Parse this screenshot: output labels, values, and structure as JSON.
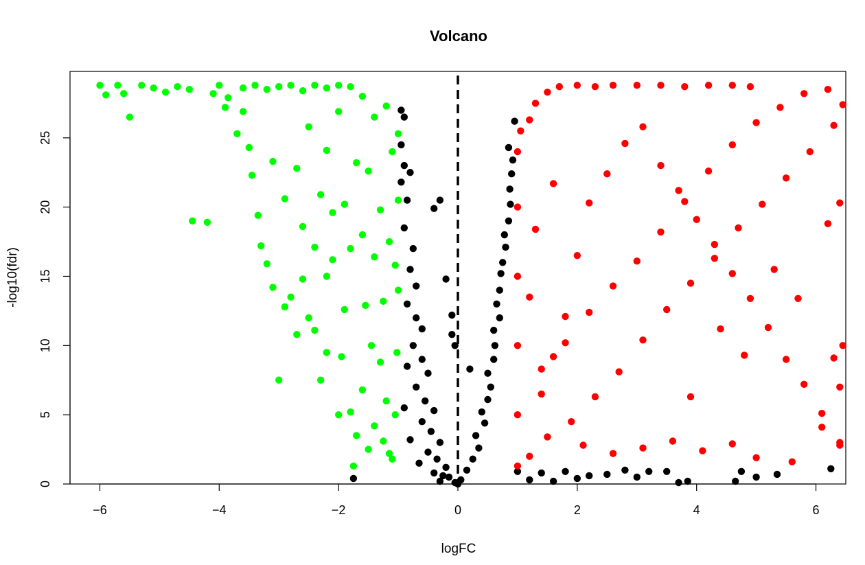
{
  "chart_data": {
    "type": "scatter",
    "title": "Volcano",
    "xlabel": "logFC",
    "ylabel": "-log10(fdr)",
    "xlim": [
      -6.5,
      6.5
    ],
    "ylim": [
      0,
      29.8
    ],
    "x_ticks": [
      "-6",
      "-4",
      "-2",
      "0",
      "2",
      "4",
      "6"
    ],
    "y_ticks": [
      "0",
      "5",
      "10",
      "15",
      "20",
      "25"
    ],
    "vertical_line": {
      "x": 0,
      "style": "dashed",
      "color": "#000000"
    },
    "legend": "none",
    "grid": false,
    "series": [
      {
        "color": "#00ff00",
        "points": [
          [
            -6.0,
            28.8
          ],
          [
            -5.9,
            28.1
          ],
          [
            -5.7,
            28.8
          ],
          [
            -5.6,
            28.2
          ],
          [
            -5.5,
            26.5
          ],
          [
            -5.3,
            28.8
          ],
          [
            -5.1,
            28.6
          ],
          [
            -4.9,
            28.3
          ],
          [
            -4.7,
            28.7
          ],
          [
            -4.5,
            28.5
          ],
          [
            -4.45,
            19.0
          ],
          [
            -4.2,
            18.9
          ],
          [
            -4.1,
            28.2
          ],
          [
            -4.0,
            28.8
          ],
          [
            -3.9,
            27.2
          ],
          [
            -3.85,
            27.9
          ],
          [
            -3.7,
            25.3
          ],
          [
            -3.6,
            26.9
          ],
          [
            -3.5,
            24.3
          ],
          [
            -3.45,
            22.3
          ],
          [
            -3.35,
            19.4
          ],
          [
            -3.3,
            17.2
          ],
          [
            -3.2,
            15.9
          ],
          [
            -3.1,
            14.2
          ],
          [
            -3.0,
            7.5
          ],
          [
            -2.9,
            12.8
          ],
          [
            -2.8,
            13.5
          ],
          [
            -2.7,
            10.8
          ],
          [
            -2.6,
            14.8
          ],
          [
            -2.5,
            12.0
          ],
          [
            -2.4,
            11.1
          ],
          [
            -2.3,
            7.5
          ],
          [
            -2.2,
            9.5
          ],
          [
            -2.1,
            16.2
          ],
          [
            -2.0,
            5.0
          ],
          [
            -1.95,
            9.2
          ],
          [
            -1.9,
            12.6
          ],
          [
            -1.8,
            5.2
          ],
          [
            -1.75,
            1.3
          ],
          [
            -1.7,
            3.5
          ],
          [
            -1.6,
            6.8
          ],
          [
            -1.55,
            12.9
          ],
          [
            -1.5,
            2.5
          ],
          [
            -1.45,
            10.0
          ],
          [
            -1.4,
            4.2
          ],
          [
            -1.3,
            8.8
          ],
          [
            -1.25,
            3.1
          ],
          [
            -1.2,
            6.0
          ],
          [
            -1.15,
            2.2
          ],
          [
            -1.1,
            1.8
          ],
          [
            -1.05,
            5.0
          ],
          [
            -1.02,
            9.5
          ],
          [
            -1.0,
            14.0
          ],
          [
            -1.0,
            20.5
          ],
          [
            -1.0,
            25.3
          ],
          [
            -1.1,
            24.0
          ],
          [
            -1.2,
            27.3
          ],
          [
            -1.4,
            26.5
          ],
          [
            -1.6,
            28.0
          ],
          [
            -1.8,
            28.7
          ],
          [
            -2.0,
            28.8
          ],
          [
            -2.2,
            28.6
          ],
          [
            -2.4,
            28.8
          ],
          [
            -2.6,
            28.4
          ],
          [
            -2.8,
            28.8
          ],
          [
            -3.0,
            28.7
          ],
          [
            -3.2,
            28.5
          ],
          [
            -3.4,
            28.8
          ],
          [
            -3.6,
            28.6
          ],
          [
            -2.5,
            25.8
          ],
          [
            -2.2,
            24.1
          ],
          [
            -2.0,
            26.9
          ],
          [
            -1.7,
            23.2
          ],
          [
            -1.5,
            22.6
          ],
          [
            -1.3,
            19.8
          ],
          [
            -1.15,
            17.5
          ],
          [
            -1.05,
            15.8
          ],
          [
            -2.3,
            20.9
          ],
          [
            -2.7,
            22.8
          ],
          [
            -1.9,
            20.2
          ],
          [
            -1.6,
            18.0
          ],
          [
            -1.4,
            16.4
          ],
          [
            -1.25,
            13.2
          ],
          [
            -1.8,
            17.0
          ],
          [
            -2.1,
            19.6
          ],
          [
            -3.1,
            23.3
          ],
          [
            -2.9,
            20.6
          ],
          [
            -2.6,
            18.6
          ],
          [
            -2.4,
            17.1
          ],
          [
            -2.2,
            15.0
          ]
        ]
      },
      {
        "color": "#000000",
        "points": [
          [
            -1.75,
            0.4
          ],
          [
            -0.95,
            27.0
          ],
          [
            -0.9,
            26.5
          ],
          [
            -0.95,
            24.5
          ],
          [
            -0.9,
            23.0
          ],
          [
            -0.8,
            22.5
          ],
          [
            -0.95,
            21.8
          ],
          [
            -0.85,
            20.5
          ],
          [
            -0.9,
            18.5
          ],
          [
            -0.75,
            17.0
          ],
          [
            -0.8,
            15.5
          ],
          [
            -0.7,
            14.3
          ],
          [
            -0.85,
            13.0
          ],
          [
            -0.7,
            12.0
          ],
          [
            -0.6,
            11.2
          ],
          [
            -0.75,
            10.0
          ],
          [
            -0.6,
            9.0
          ],
          [
            -0.5,
            8.0
          ],
          [
            -0.7,
            7.0
          ],
          [
            -0.55,
            6.0
          ],
          [
            -0.4,
            5.3
          ],
          [
            -0.6,
            4.5
          ],
          [
            -0.45,
            3.8
          ],
          [
            -0.3,
            3.0
          ],
          [
            -0.5,
            2.3
          ],
          [
            -0.35,
            1.8
          ],
          [
            -0.2,
            1.2
          ],
          [
            -0.4,
            0.8
          ],
          [
            -0.15,
            0.5
          ],
          [
            -0.3,
            0.2
          ],
          [
            -0.05,
            0.1
          ],
          [
            -0.3,
            20.5
          ],
          [
            -0.4,
            19.9
          ],
          [
            -0.2,
            14.8
          ],
          [
            -0.1,
            12.2
          ],
          [
            -0.1,
            10.8
          ],
          [
            -0.05,
            10.0
          ],
          [
            0.2,
            8.3
          ],
          [
            0.05,
            0.3
          ],
          [
            0.15,
            1.0
          ],
          [
            0.25,
            1.8
          ],
          [
            0.35,
            2.6
          ],
          [
            0.3,
            3.5
          ],
          [
            0.45,
            4.4
          ],
          [
            0.4,
            5.2
          ],
          [
            0.5,
            6.1
          ],
          [
            0.55,
            7.0
          ],
          [
            0.5,
            8.0
          ],
          [
            0.6,
            9.0
          ],
          [
            0.62,
            10.0
          ],
          [
            0.6,
            11.1
          ],
          [
            0.7,
            12.0
          ],
          [
            0.65,
            13.0
          ],
          [
            0.7,
            14.0
          ],
          [
            0.72,
            15.2
          ],
          [
            0.75,
            16.0
          ],
          [
            0.8,
            17.1
          ],
          [
            0.78,
            18.0
          ],
          [
            0.85,
            19.0
          ],
          [
            0.88,
            20.2
          ],
          [
            0.87,
            21.3
          ],
          [
            0.9,
            22.4
          ],
          [
            0.92,
            23.4
          ],
          [
            0.85,
            24.3
          ],
          [
            0.95,
            26.2
          ],
          [
            1.0,
            0.9
          ],
          [
            1.2,
            0.3
          ],
          [
            1.4,
            0.8
          ],
          [
            1.6,
            0.2
          ],
          [
            1.8,
            0.9
          ],
          [
            2.0,
            0.4
          ],
          [
            2.2,
            0.6
          ],
          [
            2.5,
            0.7
          ],
          [
            2.8,
            1.0
          ],
          [
            3.0,
            0.5
          ],
          [
            3.2,
            0.9
          ],
          [
            3.5,
            0.9
          ],
          [
            3.7,
            0.1
          ],
          [
            3.85,
            0.2
          ],
          [
            4.65,
            0.2
          ],
          [
            4.75,
            0.9
          ],
          [
            5.0,
            0.5
          ],
          [
            5.35,
            0.7
          ],
          [
            6.25,
            1.1
          ],
          [
            -0.25,
            0.6
          ],
          [
            0.0,
            0.0
          ],
          [
            -0.65,
            1.5
          ],
          [
            -0.8,
            3.2
          ],
          [
            -0.9,
            5.5
          ],
          [
            -0.85,
            8.5
          ]
        ]
      },
      {
        "color": "#ff0000",
        "points": [
          [
            1.0,
            1.3
          ],
          [
            1.0,
            5.0
          ],
          [
            1.0,
            10.0
          ],
          [
            1.0,
            15.0
          ],
          [
            1.0,
            20.0
          ],
          [
            1.0,
            24.0
          ],
          [
            1.05,
            25.5
          ],
          [
            1.2,
            26.3
          ],
          [
            1.3,
            27.5
          ],
          [
            1.5,
            28.3
          ],
          [
            1.7,
            28.7
          ],
          [
            2.0,
            28.8
          ],
          [
            2.3,
            28.7
          ],
          [
            2.6,
            28.8
          ],
          [
            3.0,
            28.8
          ],
          [
            3.4,
            28.8
          ],
          [
            3.8,
            28.7
          ],
          [
            4.2,
            28.8
          ],
          [
            4.6,
            28.8
          ],
          [
            4.9,
            28.7
          ],
          [
            1.2,
            2.0
          ],
          [
            1.4,
            6.5
          ],
          [
            1.6,
            9.2
          ],
          [
            1.8,
            12.1
          ],
          [
            2.0,
            16.5
          ],
          [
            2.2,
            20.3
          ],
          [
            2.5,
            22.4
          ],
          [
            2.8,
            24.6
          ],
          [
            3.1,
            25.8
          ],
          [
            3.4,
            23.0
          ],
          [
            3.7,
            21.2
          ],
          [
            4.0,
            19.1
          ],
          [
            4.3,
            17.3
          ],
          [
            4.6,
            15.2
          ],
          [
            4.9,
            13.4
          ],
          [
            5.2,
            11.3
          ],
          [
            5.5,
            9.0
          ],
          [
            5.8,
            7.2
          ],
          [
            6.1,
            5.1
          ],
          [
            6.4,
            3.0
          ],
          [
            1.5,
            3.4
          ],
          [
            1.9,
            4.5
          ],
          [
            2.3,
            6.3
          ],
          [
            2.7,
            8.1
          ],
          [
            3.1,
            10.4
          ],
          [
            3.5,
            12.6
          ],
          [
            3.9,
            14.5
          ],
          [
            4.3,
            16.3
          ],
          [
            4.7,
            18.5
          ],
          [
            5.1,
            20.2
          ],
          [
            5.5,
            22.1
          ],
          [
            5.9,
            24.0
          ],
          [
            6.3,
            25.9
          ],
          [
            6.45,
            27.4
          ],
          [
            6.2,
            28.5
          ],
          [
            5.8,
            28.2
          ],
          [
            5.4,
            27.2
          ],
          [
            5.0,
            26.1
          ],
          [
            4.6,
            24.5
          ],
          [
            4.2,
            22.6
          ],
          [
            3.8,
            20.4
          ],
          [
            3.4,
            18.2
          ],
          [
            3.0,
            16.1
          ],
          [
            2.6,
            14.3
          ],
          [
            2.2,
            12.4
          ],
          [
            1.8,
            10.2
          ],
          [
            1.4,
            8.3
          ],
          [
            1.2,
            13.5
          ],
          [
            1.3,
            18.4
          ],
          [
            1.6,
            21.7
          ],
          [
            2.1,
            2.8
          ],
          [
            2.6,
            2.2
          ],
          [
            3.1,
            2.6
          ],
          [
            3.6,
            3.1
          ],
          [
            4.1,
            2.4
          ],
          [
            4.6,
            2.9
          ],
          [
            5.0,
            1.9
          ],
          [
            5.6,
            1.6
          ],
          [
            6.1,
            4.1
          ],
          [
            6.4,
            2.8
          ],
          [
            6.4,
            20.3
          ],
          [
            6.2,
            18.8
          ],
          [
            6.45,
            10.0
          ],
          [
            6.3,
            9.1
          ],
          [
            6.4,
            7.0
          ],
          [
            5.7,
            13.4
          ],
          [
            5.3,
            15.5
          ],
          [
            4.8,
            9.3
          ],
          [
            4.4,
            11.2
          ],
          [
            3.9,
            6.3
          ]
        ]
      }
    ]
  }
}
